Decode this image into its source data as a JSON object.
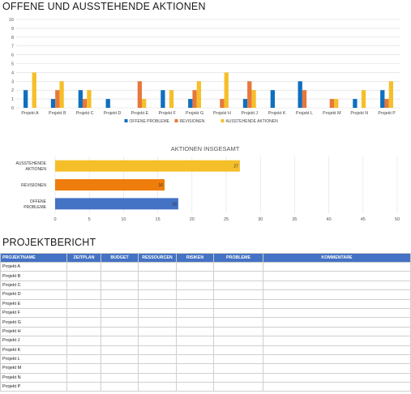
{
  "page": {
    "title1": "OFFENE UND AUSSTEHENDE AKTIONEN",
    "title2": "PROJEKTBERICHT"
  },
  "chart_data": [
    {
      "type": "bar",
      "categories": [
        "Projekt A",
        "Projekt B",
        "Projekt C",
        "Projekt D",
        "Projekt E",
        "Projekt F",
        "Projekt G",
        "Projekt H",
        "Projekt J",
        "Projekt K",
        "Projekt L",
        "Projekt M",
        "Projekt N",
        "Projekt P"
      ],
      "series": [
        {
          "name": "OFFENE PROBLEME",
          "color": "#0f6fbf",
          "values": [
            2,
            1,
            2,
            1,
            0,
            2,
            1,
            0,
            1,
            2,
            3,
            0,
            1,
            2
          ]
        },
        {
          "name": "REVISIONEN",
          "color": "#e8773a",
          "values": [
            0,
            2,
            1,
            0,
            3,
            0,
            2,
            1,
            3,
            0,
            2,
            1,
            0,
            1
          ]
        },
        {
          "name": "AUSSTEHENDE AKTIONEN",
          "color": "#f5bf2a",
          "values": [
            4,
            3,
            2,
            0,
            1,
            2,
            3,
            4,
            2,
            0,
            0,
            1,
            2,
            3
          ]
        }
      ],
      "ylim": [
        0,
        10
      ],
      "yticks": [
        0,
        1,
        2,
        3,
        4,
        5,
        6,
        7,
        8,
        9,
        10
      ],
      "legend": "bottom",
      "grid": true
    },
    {
      "type": "bar",
      "orientation": "horizontal",
      "title": "AKTIONEN INSGESAMT",
      "categories": [
        [
          "AUSSTEHENDE",
          "AKTIONEN"
        ],
        [
          "REVISIONEN"
        ],
        [
          "OFFENE",
          "PROBLEME"
        ]
      ],
      "values": [
        27,
        16,
        18
      ],
      "colors": [
        "#f5bf2a",
        "#ee7d0c",
        "#4472c4"
      ],
      "xlim": [
        0,
        50
      ],
      "xticks": [
        0,
        5,
        10,
        15,
        20,
        25,
        30,
        35,
        40,
        45,
        50
      ],
      "grid": true
    }
  ],
  "report": {
    "headers": [
      "PROJEKTNAME",
      "ZEITPLAN",
      "BUDGET",
      "RESSOURCEN",
      "RISIKEN",
      "PROBLEME",
      "KOMMENTARE"
    ],
    "rows": [
      "Projekt A",
      "Projekt B",
      "Projekt C",
      "Projekt D",
      "Projekt E",
      "Projekt F",
      "Projekt G",
      "Projekt H",
      "Projekt J",
      "Projekt K",
      "Projekt L",
      "Projekt M",
      "Projekt N",
      "Projekt P"
    ]
  }
}
